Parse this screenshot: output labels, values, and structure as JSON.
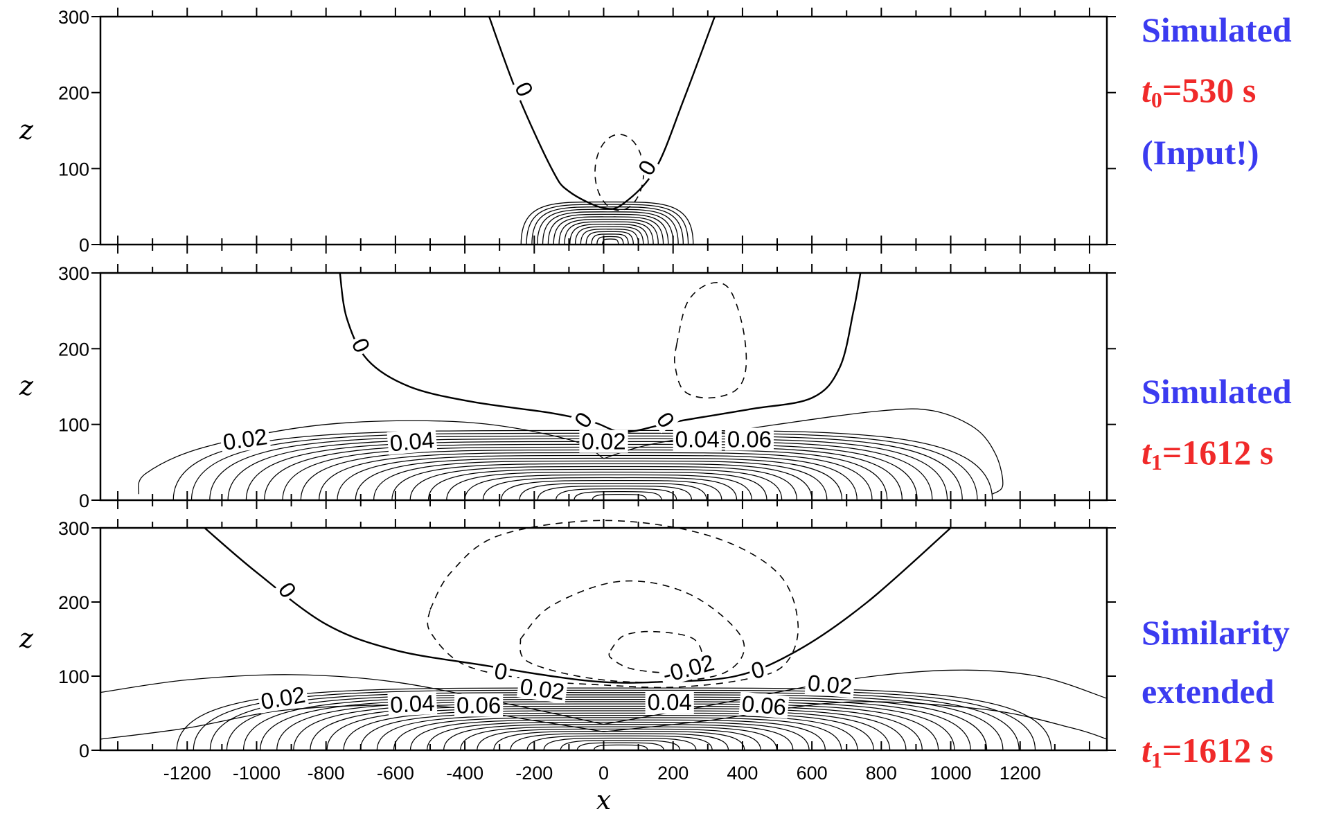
{
  "chart_data": [
    {
      "type": "contour",
      "panel": "top",
      "ylabel": "z",
      "xlim": [
        -1450,
        1450
      ],
      "ylim": [
        0,
        300
      ],
      "xticks": [
        -1200,
        -1000,
        -800,
        -600,
        -400,
        -200,
        0,
        200,
        400,
        600,
        800,
        1000,
        1200
      ],
      "yticks": [
        0,
        100,
        200,
        300
      ],
      "contour_labels": [
        "0",
        "0"
      ],
      "side_text": {
        "title": "Simulated",
        "time_var": "t",
        "time_sub": "0",
        "time_value": "=530 s",
        "note": "(Input!)"
      }
    },
    {
      "type": "contour",
      "panel": "middle",
      "ylabel": "z",
      "xlim": [
        -1450,
        1450
      ],
      "ylim": [
        0,
        300
      ],
      "yticks": [
        0,
        100,
        200,
        300
      ],
      "contour_labels": [
        "0",
        "0",
        "0",
        "0.02",
        "0.04",
        "0.02",
        "0.04",
        "0.06"
      ],
      "side_text": {
        "title": "Simulated",
        "time_var": "t",
        "time_sub": "1",
        "time_value": "=1612 s"
      }
    },
    {
      "type": "contour",
      "panel": "bottom",
      "ylabel": "z",
      "xlabel": "x",
      "xlim": [
        -1450,
        1450
      ],
      "ylim": [
        0,
        300
      ],
      "xticks": [
        -1200,
        -1000,
        -800,
        -600,
        -400,
        -200,
        0,
        200,
        400,
        600,
        800,
        1000,
        1200
      ],
      "yticks": [
        0,
        100,
        200,
        300
      ],
      "contour_labels": [
        "0",
        "0",
        "0",
        "-0.02",
        "0.02",
        "0.02",
        "0.04",
        "0.06",
        "0.02",
        "0.04",
        "0.06"
      ],
      "side_text": {
        "title": "Similarity",
        "title2": "extended",
        "time_var": "t",
        "time_sub": "1",
        "time_value": "=1612 s"
      }
    }
  ]
}
